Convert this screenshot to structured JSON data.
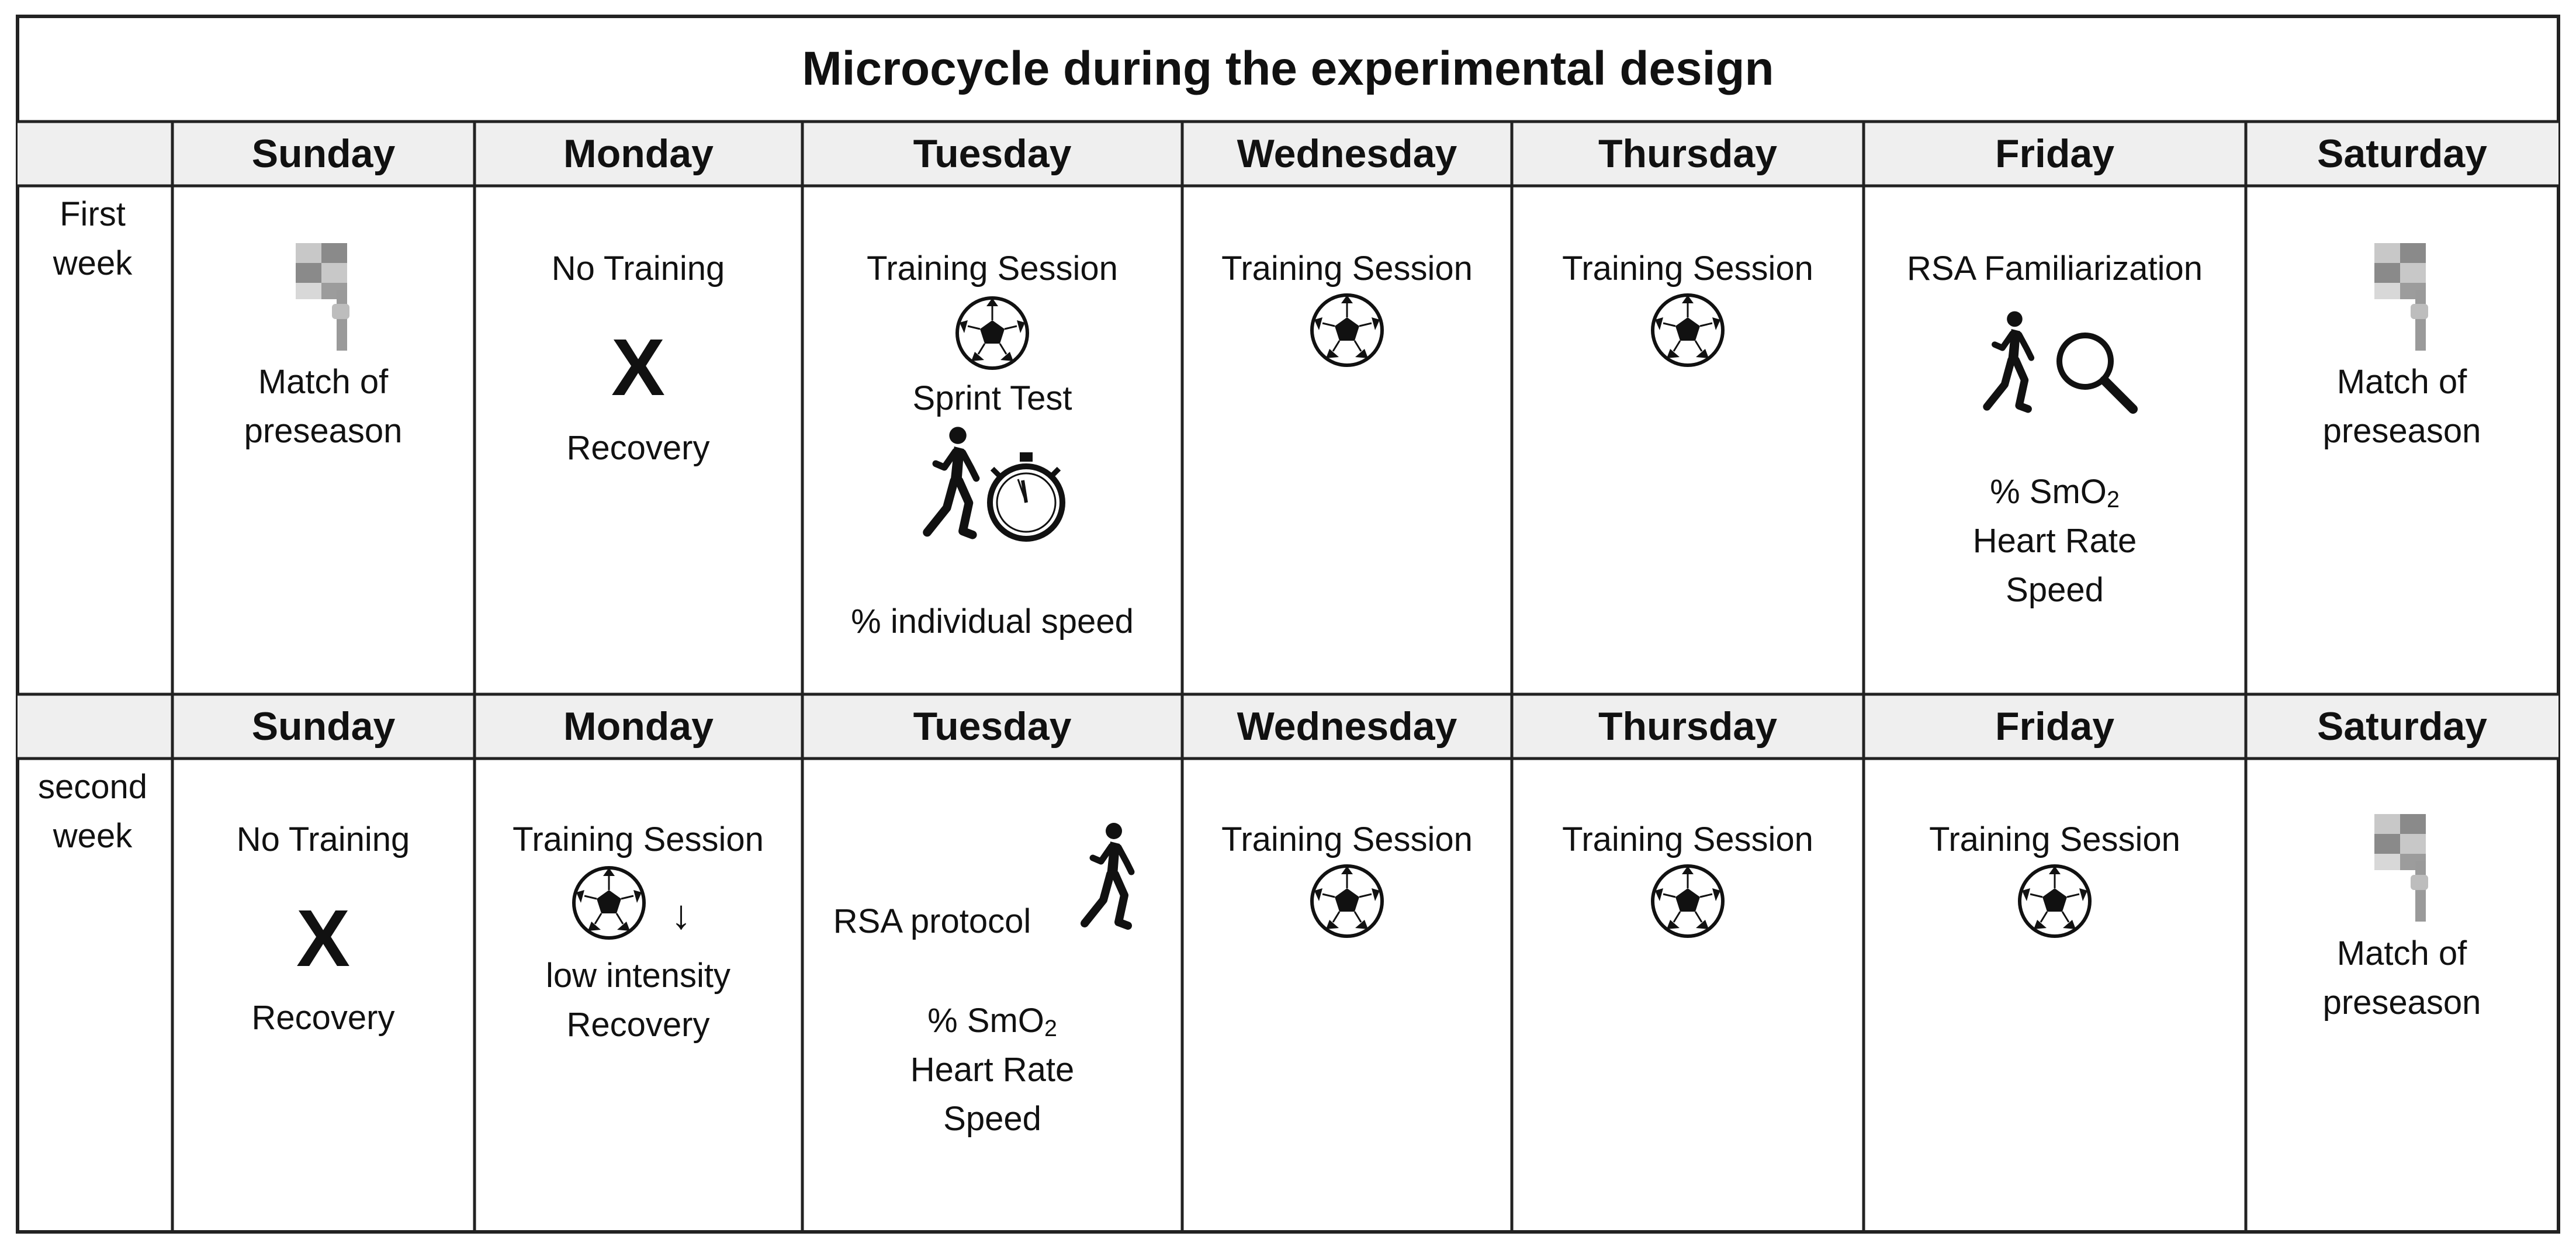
{
  "title": "Microcycle during the experimental design",
  "days": [
    "Sunday",
    "Monday",
    "Tuesday",
    "Wednesday",
    "Thursday",
    "Friday",
    "Saturday"
  ],
  "weeks": [
    {
      "label_line1": "First",
      "label_line2": "week",
      "sunday": {
        "lines": [
          "Match of",
          "preseason"
        ],
        "icon": "flag-icon"
      },
      "monday": {
        "top": "No Training",
        "mark": "X",
        "bottom": "Recovery",
        "icon": "x-mark-icon"
      },
      "tuesday": {
        "lines": [
          "Training Session",
          "Sprint Test",
          "% individual speed"
        ],
        "icons": [
          "soccer-ball-icon",
          "runner-icon",
          "stopwatch-icon"
        ]
      },
      "wednesday": {
        "lines": [
          "Training Session"
        ],
        "icon": "soccer-ball-icon"
      },
      "thursday": {
        "lines": [
          "Training Session"
        ],
        "icon": "soccer-ball-icon"
      },
      "friday": {
        "lines": [
          "RSA Familiarization",
          "% SmO",
          "2",
          "Heart Rate",
          "Speed"
        ],
        "icons": [
          "runner-icon",
          "magnifier-icon"
        ]
      },
      "saturday": {
        "lines": [
          "Match of",
          "preseason"
        ],
        "icon": "flag-icon"
      }
    },
    {
      "label_line1": "second",
      "label_line2": "week",
      "sunday": {
        "top": "No Training",
        "mark": "X",
        "bottom": "Recovery",
        "icon": "x-mark-icon"
      },
      "monday": {
        "lines": [
          "Training Session",
          "↓",
          "low intensity",
          "Recovery"
        ],
        "icons": [
          "soccer-ball-icon",
          "down-arrow-icon"
        ]
      },
      "tuesday": {
        "lines": [
          "RSA protocol",
          "% SmO",
          "2",
          "Heart Rate",
          "Speed"
        ],
        "icons": [
          "runner-icon"
        ]
      },
      "wednesday": {
        "lines": [
          "Training Session"
        ],
        "icon": "soccer-ball-icon"
      },
      "thursday": {
        "lines": [
          "Training Session"
        ],
        "icon": "soccer-ball-icon"
      },
      "friday": {
        "lines": [
          "Training Session"
        ],
        "icon": "soccer-ball-icon"
      },
      "saturday": {
        "lines": [
          "Match of",
          "preseason"
        ],
        "icon": "flag-icon"
      }
    }
  ],
  "colors": {
    "border": "#222222",
    "header_row": "#efefef",
    "ink": "#111111",
    "flag_dark": "#7a7a7a",
    "flag_light": "#bdbdbd"
  }
}
